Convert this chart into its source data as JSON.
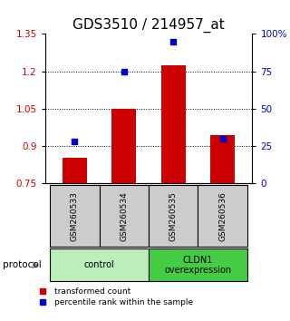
{
  "title": "GDS3510 / 214957_at",
  "samples": [
    "GSM260533",
    "GSM260534",
    "GSM260535",
    "GSM260536"
  ],
  "red_values": [
    0.855,
    1.05,
    1.225,
    0.945
  ],
  "blue_values": [
    28,
    75,
    95,
    30
  ],
  "ylim_left": [
    0.75,
    1.35
  ],
  "ylim_right": [
    0,
    100
  ],
  "yticks_left": [
    0.75,
    0.9,
    1.05,
    1.2,
    1.35
  ],
  "yticks_right": [
    0,
    25,
    50,
    75,
    100
  ],
  "ytick_labels_right": [
    "0",
    "25",
    "50",
    "75",
    "100%"
  ],
  "baseline": 0.75,
  "bar_color": "#cc0000",
  "dot_color": "#0000cc",
  "groups": [
    {
      "label": "control",
      "indices": [
        0,
        1
      ],
      "color": "#bbeebb"
    },
    {
      "label": "CLDN1\noverexpression",
      "indices": [
        2,
        3
      ],
      "color": "#44cc44"
    }
  ],
  "protocol_label": "protocol",
  "legend_bar": "transformed count",
  "legend_dot": "percentile rank within the sample",
  "bg_color": "#ffffff",
  "sample_bg_color": "#cccccc",
  "title_fontsize": 11
}
